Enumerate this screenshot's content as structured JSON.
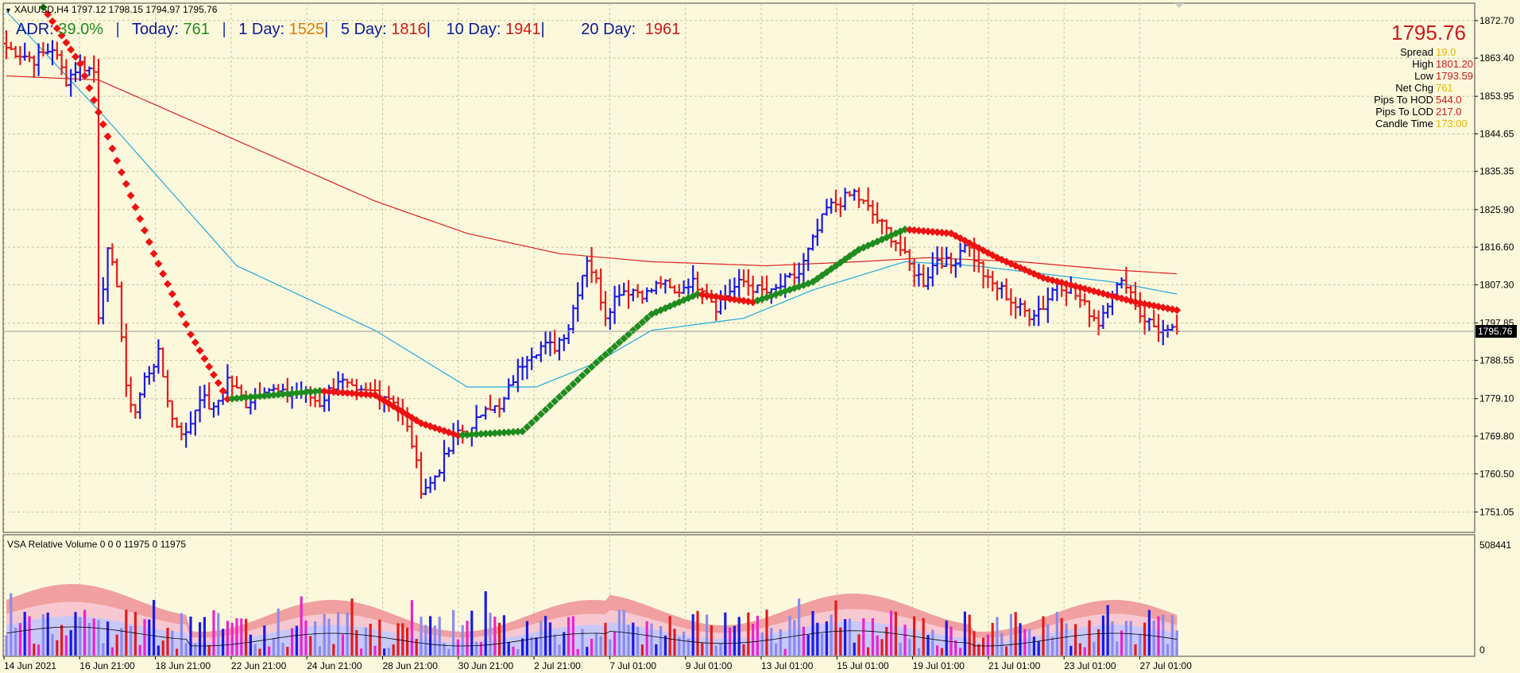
{
  "header": {
    "symbol_line": "XAUUSD,H4  1797.12 1798.15 1794.97 1795.76",
    "chevron": "triangle-down-icon"
  },
  "adr": {
    "label": "ADR:",
    "pct": "39.0%",
    "today_label": "Today:",
    "today": "761",
    "d1_label": "1 Day:",
    "d1": "1525",
    "d5_label": "5 Day:",
    "d5": "1816",
    "d10_label": "10 Day:",
    "d10": "1941",
    "d20_label": "20 Day:",
    "d20": "1961",
    "sep": "|"
  },
  "price_panel": {
    "price": "1795.76",
    "rows": [
      {
        "key": "Spread",
        "val": "19.0",
        "color": "#e6b800"
      },
      {
        "key": "High",
        "val": "1801.20",
        "color": "#d01818"
      },
      {
        "key": "Low",
        "val": "1793.59",
        "color": "#d01818"
      },
      {
        "key": "Net Chg",
        "val": "761",
        "color": "#e6b800"
      },
      {
        "key": "Pips To HOD",
        "val": "544.0",
        "color": "#d01818"
      },
      {
        "key": "Pips To LOD",
        "val": "217.0",
        "color": "#d01818"
      },
      {
        "key": "Candle Time",
        "val": "173:00",
        "color": "#e6b800"
      }
    ]
  },
  "colors": {
    "bull": "#1a1ae6",
    "bear": "#e61a1a",
    "ma_fast": "#22aadd",
    "ma_slow": "#dd2222",
    "trend_up": "#1e8c1e",
    "trend_down": "#ee1111",
    "grid": "#c9c3a3",
    "background": "#fcf8dc"
  },
  "chart_data": [
    {
      "type": "ohlc",
      "symbol": "XAUUSD",
      "timeframe": "H4",
      "ylim": [
        1746.0,
        1877.0
      ],
      "y_ticks": [
        "1872.70",
        "1863.40",
        "1853.95",
        "1844.65",
        "1835.35",
        "1825.90",
        "1816.60",
        "1807.30",
        "1797.85",
        "1788.55",
        "1779.10",
        "1769.80",
        "1760.50",
        "1751.05"
      ],
      "current_price_label": "1795.76",
      "current_price": 1795.76,
      "x_labels": [
        "14 Jun 2021",
        "16 Jun 21:00",
        "18 Jun 21:00",
        "22 Jun 21:00",
        "24 Jun 21:00",
        "28 Jun 21:00",
        "30 Jun 21:00",
        "2 Jul 21:00",
        "7 Jul 01:00",
        "9 Jul 01:00",
        "13 Jul 01:00",
        "15 Jul 01:00",
        "19 Jul 01:00",
        "21 Jul 01:00",
        "23 Jul 01:00",
        "27 Jul 01:00"
      ],
      "close_anchors": [
        [
          0,
          1866
        ],
        [
          6,
          1863
        ],
        [
          10,
          1866
        ],
        [
          13,
          1858
        ],
        [
          16,
          1862
        ],
        [
          19,
          1860
        ],
        [
          20,
          1800
        ],
        [
          22,
          1815
        ],
        [
          24,
          1808
        ],
        [
          26,
          1781
        ],
        [
          28,
          1776
        ],
        [
          30,
          1784
        ],
        [
          33,
          1790
        ],
        [
          36,
          1774
        ],
        [
          39,
          1770
        ],
        [
          42,
          1780
        ],
        [
          45,
          1776
        ],
        [
          48,
          1784
        ],
        [
          52,
          1778
        ],
        [
          56,
          1782
        ],
        [
          60,
          1780
        ],
        [
          64,
          1781
        ],
        [
          68,
          1778
        ],
        [
          72,
          1784
        ],
        [
          76,
          1780
        ],
        [
          80,
          1781
        ],
        [
          84,
          1779
        ],
        [
          86,
          1775
        ],
        [
          88,
          1768
        ],
        [
          90,
          1757
        ],
        [
          92,
          1758
        ],
        [
          95,
          1764
        ],
        [
          98,
          1771
        ],
        [
          101,
          1771
        ],
        [
          104,
          1778
        ],
        [
          107,
          1776
        ],
        [
          110,
          1784
        ],
        [
          113,
          1790
        ],
        [
          116,
          1792
        ],
        [
          119,
          1792
        ],
        [
          122,
          1797
        ],
        [
          124,
          1806
        ],
        [
          126,
          1814
        ],
        [
          128,
          1808
        ],
        [
          130,
          1800
        ],
        [
          133,
          1806
        ],
        [
          136,
          1806
        ],
        [
          139,
          1805
        ],
        [
          142,
          1808
        ],
        [
          145,
          1805
        ],
        [
          148,
          1808
        ],
        [
          151,
          1807
        ],
        [
          154,
          1802
        ],
        [
          157,
          1806
        ],
        [
          160,
          1808
        ],
        [
          163,
          1806
        ],
        [
          166,
          1805
        ],
        [
          169,
          1808
        ],
        [
          172,
          1810
        ],
        [
          175,
          1818
        ],
        [
          178,
          1826
        ],
        [
          181,
          1828
        ],
        [
          184,
          1830
        ],
        [
          187,
          1826
        ],
        [
          190,
          1822
        ],
        [
          193,
          1818
        ],
        [
          196,
          1812
        ],
        [
          199,
          1808
        ],
        [
          202,
          1814
        ],
        [
          205,
          1812
        ],
        [
          208,
          1818
        ],
        [
          210,
          1814
        ],
        [
          213,
          1808
        ],
        [
          216,
          1806
        ],
        [
          219,
          1802
        ],
        [
          222,
          1800
        ],
        [
          225,
          1802
        ],
        [
          228,
          1808
        ],
        [
          231,
          1806
        ],
        [
          234,
          1802
        ],
        [
          237,
          1798
        ],
        [
          240,
          1806
        ],
        [
          243,
          1808
        ],
        [
          246,
          1800
        ],
        [
          249,
          1797
        ],
        [
          252,
          1795
        ],
        [
          254,
          1796
        ]
      ],
      "indicators": [
        {
          "name": "fast_ma",
          "points": [
            [
              0,
              1875
            ],
            [
              22,
              1848
            ],
            [
              50,
              1812
            ],
            [
              80,
              1796
            ],
            [
              100,
              1782
            ],
            [
              115,
              1782
            ],
            [
              128,
              1788
            ],
            [
              140,
              1796
            ],
            [
              160,
              1799
            ],
            [
              175,
              1806
            ],
            [
              195,
              1813
            ],
            [
              210,
              1812
            ],
            [
              225,
              1810
            ],
            [
              240,
              1808
            ],
            [
              254,
              1805
            ]
          ]
        },
        {
          "name": "slow_ma",
          "points": [
            [
              0,
              1859
            ],
            [
              20,
              1858
            ],
            [
              40,
              1848
            ],
            [
              60,
              1838
            ],
            [
              80,
              1828
            ],
            [
              100,
              1820
            ],
            [
              120,
              1815
            ],
            [
              140,
              1813
            ],
            [
              165,
              1812
            ],
            [
              185,
              1813
            ],
            [
              200,
              1814
            ],
            [
              220,
              1813
            ],
            [
              240,
              1811
            ],
            [
              254,
              1810
            ]
          ]
        },
        {
          "name": "trend_line",
          "points": [
            [
              8,
              1876
            ],
            [
              16,
              1862
            ],
            [
              24,
              1838
            ],
            [
              32,
              1815
            ],
            [
              40,
              1795
            ],
            [
              48,
              1779
            ],
            [
              58,
              1780
            ],
            [
              68,
              1781
            ],
            [
              80,
              1780
            ],
            [
              90,
              1773
            ],
            [
              98,
              1770
            ],
            [
              112,
              1771
            ],
            [
              128,
              1788
            ],
            [
              140,
              1800
            ],
            [
              150,
              1805
            ],
            [
              162,
              1803
            ],
            [
              175,
              1808
            ],
            [
              185,
              1816
            ],
            [
              195,
              1821
            ],
            [
              205,
              1820
            ],
            [
              215,
              1814
            ],
            [
              225,
              1809
            ],
            [
              235,
              1806
            ],
            [
              245,
              1803
            ],
            [
              254,
              1801
            ]
          ]
        }
      ]
    },
    {
      "type": "bar",
      "title": "VSA Relative Volume 0 0 0 11975 0 11975",
      "y_ticks": [
        "508441",
        "0"
      ]
    }
  ]
}
